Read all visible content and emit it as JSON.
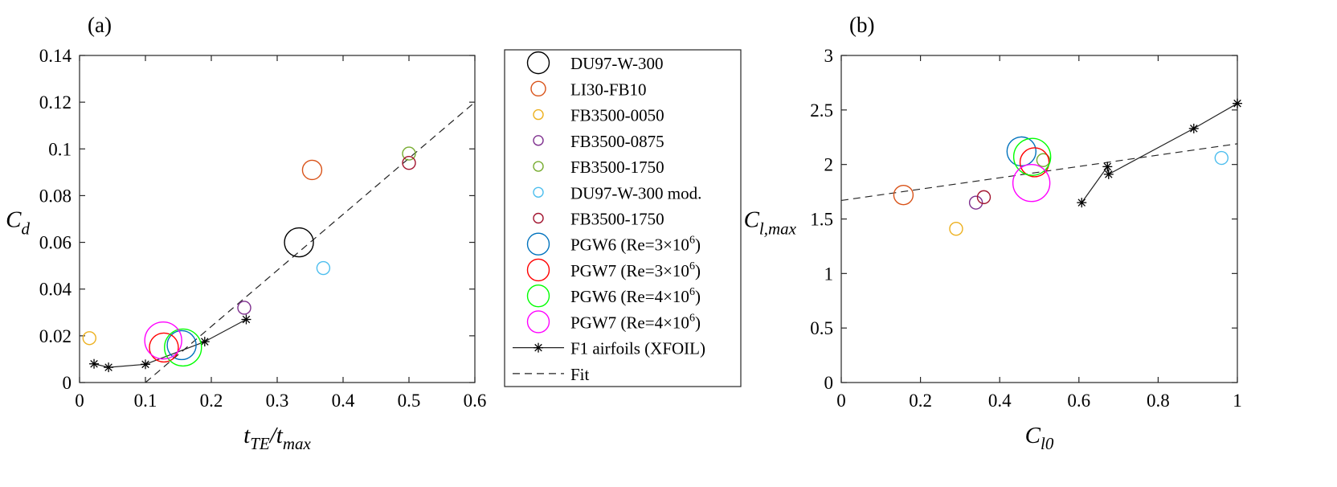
{
  "chart_data": [
    {
      "panel_label": "(a)",
      "type": "scatter",
      "xlabel": {
        "main": "t",
        "sub": "TE",
        "sep": "/",
        "main2": "t",
        "sub2": "max"
      },
      "ylabel": {
        "main": "C",
        "sub": "d"
      },
      "xlim": [
        0,
        0.6
      ],
      "ylim": [
        0,
        0.14
      ],
      "xticks": [
        "0",
        "0.1",
        "0.2",
        "0.3",
        "0.4",
        "0.5",
        "0.6"
      ],
      "yticks": [
        "0",
        "0.02",
        "0.04",
        "0.06",
        "0.08",
        "0.1",
        "0.12",
        "0.14"
      ],
      "series": [
        {
          "name": "DU97-W-300",
          "x": 0.333,
          "y": 0.06,
          "size": "large",
          "color": "#000000"
        },
        {
          "name": "LI30-FB10",
          "x": 0.353,
          "y": 0.091,
          "size": "medium",
          "color": "#d95319"
        },
        {
          "name": "FB3500-0050",
          "x": 0.015,
          "y": 0.019,
          "size": "small",
          "color": "#edb120"
        },
        {
          "name": "FB3500-0875",
          "x": 0.25,
          "y": 0.032,
          "size": "small",
          "color": "#7e2f8e"
        },
        {
          "name": "FB3500-1750",
          "x": 0.5,
          "y": 0.098,
          "size": "small",
          "color": "#77ac30"
        },
        {
          "name": "DU97-W-300 mod.",
          "x": 0.37,
          "y": 0.049,
          "size": "small",
          "color": "#4dbeee"
        },
        {
          "name": "FB3500-1750",
          "x": 0.5,
          "y": 0.094,
          "size": "small",
          "color": "#a2142f"
        },
        {
          "name": "PGW6 (Re=3×10⁶)",
          "x": 0.155,
          "y": 0.016,
          "size": "large",
          "color": "#0072bd"
        },
        {
          "name": "PGW7 (Re=3×10⁶)",
          "x": 0.128,
          "y": 0.015,
          "size": "large",
          "color": "#ff0000"
        },
        {
          "name": "PGW6 (Re=4×10⁶)",
          "x": 0.157,
          "y": 0.015,
          "size": "xlarge",
          "color": "#00ff00"
        },
        {
          "name": "PGW7 (Re=4×10⁶)",
          "x": 0.127,
          "y": 0.018,
          "size": "xlarge",
          "color": "#ff00ff"
        }
      ],
      "xfoil": {
        "name": "F1 airfoils (XFOIL)",
        "x": [
          0.022,
          0.044,
          0.1,
          0.19,
          0.253
        ],
        "y": [
          0.008,
          0.0065,
          0.0078,
          0.0175,
          0.027
        ]
      },
      "fit": {
        "name": "Fit",
        "x": [
          0.1,
          0.6
        ],
        "y": [
          0.0,
          0.12
        ]
      }
    },
    {
      "panel_label": "(b)",
      "type": "scatter",
      "xlabel": {
        "main": "C",
        "sub": "l0"
      },
      "ylabel": {
        "main": "C",
        "sub": "l,max"
      },
      "xlim": [
        0,
        1
      ],
      "ylim": [
        0,
        3
      ],
      "xticks": [
        "0",
        "0.2",
        "0.4",
        "0.6",
        "0.8",
        "1"
      ],
      "yticks": [
        "0",
        "0.5",
        "1",
        "1.5",
        "2",
        "2.5",
        "3"
      ],
      "series": [
        {
          "name": "LI30-FB10",
          "x": 0.157,
          "y": 1.72,
          "size": "medium",
          "color": "#d95319"
        },
        {
          "name": "FB3500-0050",
          "x": 0.29,
          "y": 1.41,
          "size": "small",
          "color": "#edb120"
        },
        {
          "name": "FB3500-0875",
          "x": 0.34,
          "y": 1.65,
          "size": "small",
          "color": "#7e2f8e"
        },
        {
          "name": "FB3500-1750",
          "x": 0.51,
          "y": 2.04,
          "size": "small",
          "color": "#77ac30"
        },
        {
          "name": "DU97-W-300 mod.",
          "x": 0.96,
          "y": 2.06,
          "size": "small",
          "color": "#4dbeee"
        },
        {
          "name": "FB3500-1750",
          "x": 0.36,
          "y": 1.7,
          "size": "small",
          "color": "#a2142f"
        },
        {
          "name": "PGW6 (Re=3×10⁶)",
          "x": 0.455,
          "y": 2.12,
          "size": "large",
          "color": "#0072bd"
        },
        {
          "name": "PGW7 (Re=3×10⁶)",
          "x": 0.488,
          "y": 2.02,
          "size": "large",
          "color": "#ff0000"
        },
        {
          "name": "PGW6 (Re=4×10⁶)",
          "x": 0.482,
          "y": 2.07,
          "size": "xlarge",
          "color": "#00ff00"
        },
        {
          "name": "PGW7 (Re=4×10⁶)",
          "x": 0.48,
          "y": 1.83,
          "size": "xlarge",
          "color": "#ff00ff"
        }
      ],
      "xfoil": {
        "name": "F1 airfoils (XFOIL)",
        "x": [
          0.607,
          0.672,
          0.675,
          0.89,
          1.0
        ],
        "y": [
          1.65,
          1.98,
          1.91,
          2.33,
          2.56
        ]
      },
      "fit": {
        "name": "Fit",
        "x": [
          0,
          1
        ],
        "y": [
          1.67,
          2.19
        ]
      }
    }
  ],
  "legend": {
    "entries": [
      {
        "label": "DU97-W-300",
        "marker": "circle",
        "size": "large",
        "color": "#000000"
      },
      {
        "label": "LI30-FB10",
        "marker": "circle",
        "size": "medium",
        "color": "#d95319"
      },
      {
        "label": "FB3500-0050",
        "marker": "circle",
        "size": "small",
        "color": "#edb120"
      },
      {
        "label": "FB3500-0875",
        "marker": "circle",
        "size": "small",
        "color": "#7e2f8e"
      },
      {
        "label": "FB3500-1750",
        "marker": "circle",
        "size": "small",
        "color": "#77ac30"
      },
      {
        "label": "DU97-W-300 mod.",
        "marker": "circle",
        "size": "small",
        "color": "#4dbeee"
      },
      {
        "label": "FB3500-1750",
        "marker": "circle",
        "size": "small",
        "color": "#a2142f"
      },
      {
        "label": "PGW6 (Re=3×10",
        "sup": "6",
        "tail": ")",
        "marker": "circle",
        "size": "large",
        "color": "#0072bd"
      },
      {
        "label": "PGW7 (Re=3×10",
        "sup": "6",
        "tail": ")",
        "marker": "circle",
        "size": "large",
        "color": "#ff0000"
      },
      {
        "label": "PGW6 (Re=4×10",
        "sup": "6",
        "tail": ")",
        "marker": "circle",
        "size": "large",
        "color": "#00ff00"
      },
      {
        "label": "PGW7 (Re=4×10",
        "sup": "6",
        "tail": ")",
        "marker": "circle",
        "size": "large",
        "color": "#ff00ff"
      },
      {
        "label": "F1 airfoils (XFOIL)",
        "marker": "line-star",
        "color": "#000000"
      },
      {
        "label": "Fit",
        "marker": "dash",
        "color": "#000000"
      }
    ]
  }
}
